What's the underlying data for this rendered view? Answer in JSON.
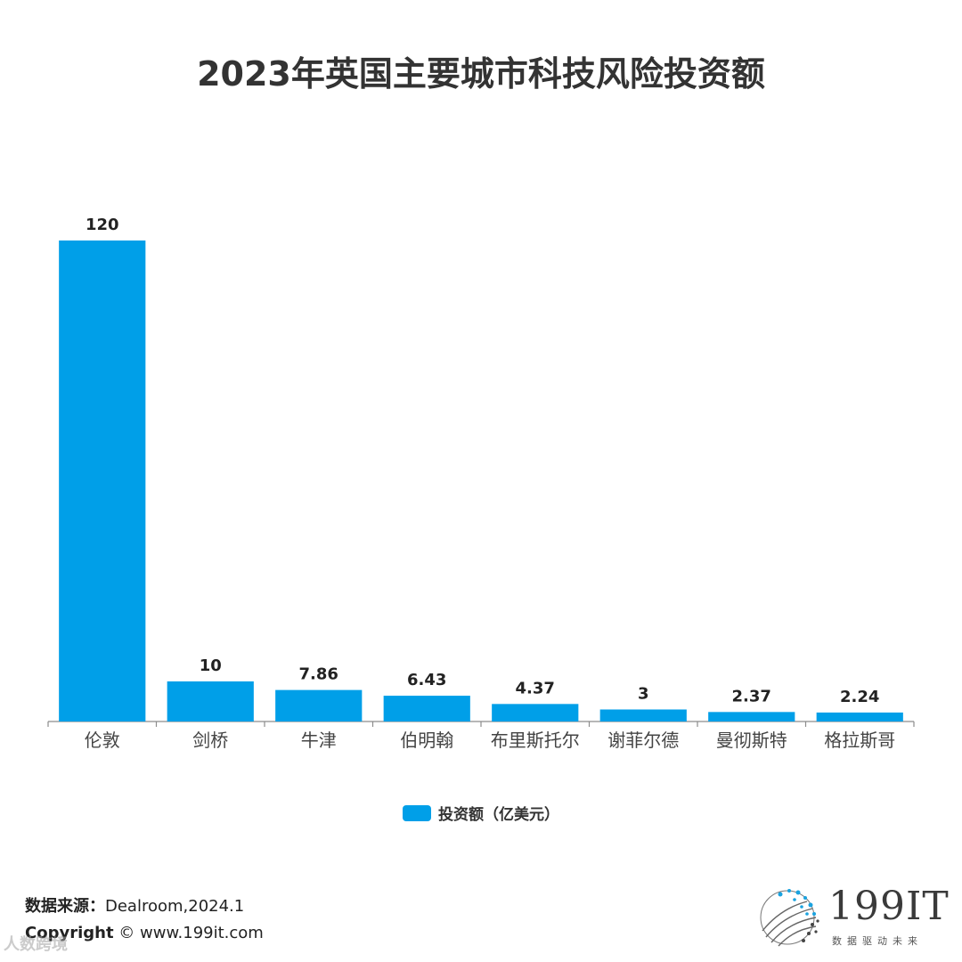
{
  "title": "2023年英国主要城市科技风险投资额",
  "chart_data": {
    "type": "bar",
    "title": "2023年英国主要城市科技风险投资额",
    "categories": [
      "伦敦",
      "剑桥",
      "牛津",
      "伯明翰",
      "布里斯托尔",
      "谢菲尔德",
      "曼彻斯特",
      "格拉斯哥"
    ],
    "values": [
      120,
      10,
      7.86,
      6.43,
      4.37,
      3,
      2.37,
      2.24
    ],
    "value_labels": [
      "120",
      "10",
      "7.86",
      "6.43",
      "4.37",
      "3",
      "2.37",
      "2.24"
    ],
    "series_name": "投资额（亿美元）",
    "xlabel": "",
    "ylabel": "",
    "ylim": [
      0,
      120
    ],
    "grid": false,
    "legend": "bottom-center",
    "color": "#009fe8"
  },
  "legend": {
    "label": "投资额（亿美元）",
    "color": "#009fe8"
  },
  "footer": {
    "source_label": "数据来源：",
    "source_value": "Dealroom,2024.1",
    "copyright_label": "Copyright",
    "copyright_value": "©  www.199it.com",
    "watermark": "人数跨境"
  },
  "logo": {
    "text": "199IT",
    "subtitle": "数据驱动未来",
    "icon": "dot-sphere-icon"
  }
}
